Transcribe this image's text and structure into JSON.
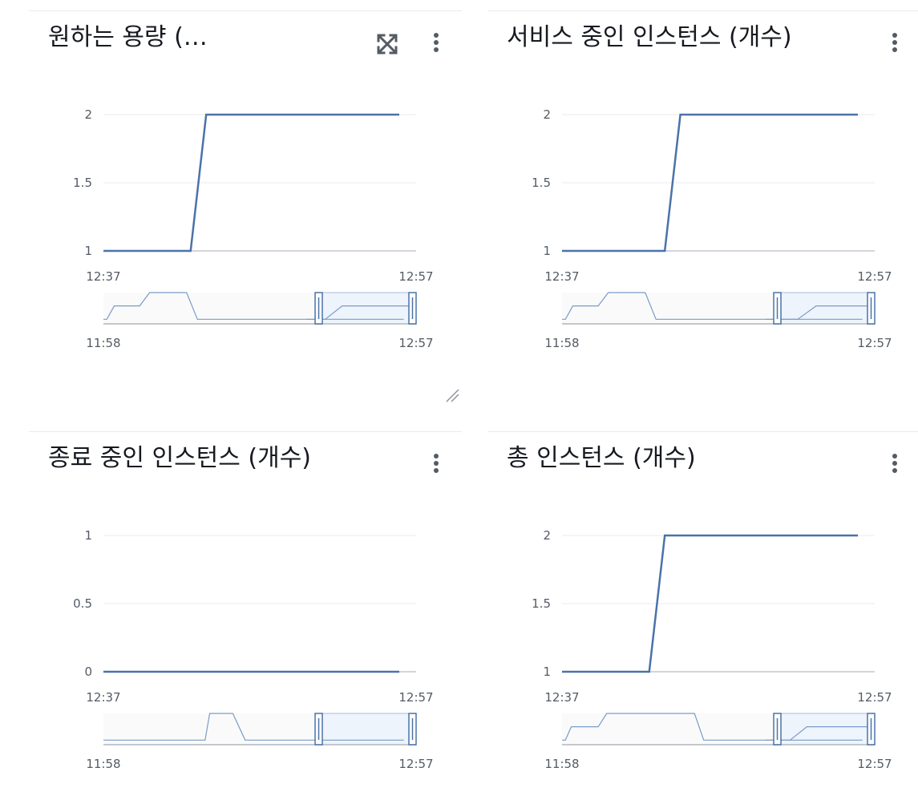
{
  "widgets": [
    {
      "id": "w1",
      "title": "원하는 용량 (…",
      "has_expand": true,
      "has_resize": true,
      "chart_data": {
        "type": "line",
        "title": "원하는 용량 (…",
        "ylim": [
          1,
          2
        ],
        "y_ticks": [
          "1",
          "1.5",
          "2"
        ],
        "x_ticks": [
          "12:37",
          "12:57"
        ],
        "series": [
          {
            "x": [
              0,
              5.6,
              6.6,
              19
            ],
            "y": [
              1,
              1,
              2,
              2
            ]
          }
        ],
        "navigator": {
          "x_ticks": [
            "11:58",
            "12:57"
          ],
          "levels": [
            [
              0,
              0.1
            ],
            [
              0.22,
              0.1
            ],
            [
              0.7,
              0.55
            ],
            [
              2.35,
              0.55
            ],
            [
              3.0,
              1.0
            ],
            [
              5.4,
              1.0
            ],
            [
              6.1,
              0.1
            ],
            [
              19.5,
              0.1
            ]
          ],
          "levels_in_window": [
            [
              13.2,
              0.1
            ],
            [
              14.4,
              0.1
            ],
            [
              15.5,
              0.55
            ],
            [
              20.3,
              0.55
            ]
          ],
          "window_start": 0.677,
          "window_end": 1.0
        }
      }
    },
    {
      "id": "w2",
      "title": "서비스 중인 인스턴스 (개수)",
      "has_expand": false,
      "has_resize": false,
      "chart_data": {
        "type": "line",
        "title": "서비스 중인 인스턴스 (개수)",
        "ylim": [
          1,
          2
        ],
        "y_ticks": [
          "1",
          "1.5",
          "2"
        ],
        "x_ticks": [
          "12:37",
          "12:57"
        ],
        "series": [
          {
            "x": [
              0,
              6.6,
              7.6,
              19
            ],
            "y": [
              1,
              1,
              2,
              2
            ]
          }
        ],
        "navigator": {
          "x_ticks": [
            "11:58",
            "12:57"
          ],
          "levels": [
            [
              0,
              0.1
            ],
            [
              0.22,
              0.1
            ],
            [
              0.7,
              0.55
            ],
            [
              2.35,
              0.55
            ],
            [
              3.0,
              1.0
            ],
            [
              5.4,
              1.0
            ],
            [
              6.1,
              0.1
            ],
            [
              19.5,
              0.1
            ]
          ],
          "levels_in_window": [
            [
              13.2,
              0.1
            ],
            [
              15.3,
              0.1
            ],
            [
              16.5,
              0.55
            ],
            [
              20.3,
              0.55
            ]
          ],
          "window_start": 0.677,
          "window_end": 1.0
        }
      }
    },
    {
      "id": "w3",
      "title": "종료 중인 인스턴스 (개수)",
      "has_expand": false,
      "has_resize": false,
      "chart_data": {
        "type": "line",
        "title": "종료 중인 인스턴스 (개수)",
        "ylim": [
          0,
          1
        ],
        "y_ticks": [
          "0",
          "0.5",
          "1"
        ],
        "x_ticks": [
          "12:37",
          "12:57"
        ],
        "series": [
          {
            "x": [
              0,
              19
            ],
            "y": [
              0,
              0
            ]
          }
        ],
        "navigator": {
          "x_ticks": [
            "11:58",
            "12:57"
          ],
          "levels": [
            [
              0,
              0.1
            ],
            [
              6.6,
              0.1
            ],
            [
              6.9,
              1.0
            ],
            [
              8.4,
              1.0
            ],
            [
              9.2,
              0.1
            ],
            [
              19.5,
              0.1
            ]
          ],
          "levels_in_window": [],
          "window_start": 0.677,
          "window_end": 1.0
        }
      }
    },
    {
      "id": "w4",
      "title": "총 인스턴스 (개수)",
      "has_expand": false,
      "has_resize": false,
      "chart_data": {
        "type": "line",
        "title": "총 인스턴스 (개수)",
        "ylim": [
          1,
          2
        ],
        "y_ticks": [
          "1",
          "1.5",
          "2"
        ],
        "x_ticks": [
          "12:37",
          "12:57"
        ],
        "series": [
          {
            "x": [
              0,
              5.6,
              6.6,
              19
            ],
            "y": [
              1,
              1,
              2,
              2
            ]
          }
        ],
        "navigator": {
          "x_ticks": [
            "11:58",
            "12:57"
          ],
          "levels": [
            [
              0,
              0.1
            ],
            [
              0.22,
              0.1
            ],
            [
              0.6,
              0.55
            ],
            [
              2.35,
              0.55
            ],
            [
              2.9,
              1.0
            ],
            [
              8.6,
              1.0
            ],
            [
              9.2,
              0.1
            ],
            [
              19.5,
              0.1
            ]
          ],
          "levels_in_window": [
            [
              13.2,
              0.1
            ],
            [
              14.8,
              0.1
            ],
            [
              15.9,
              0.55
            ],
            [
              20.3,
              0.55
            ]
          ],
          "window_start": 0.677,
          "window_end": 1.0
        }
      }
    }
  ]
}
